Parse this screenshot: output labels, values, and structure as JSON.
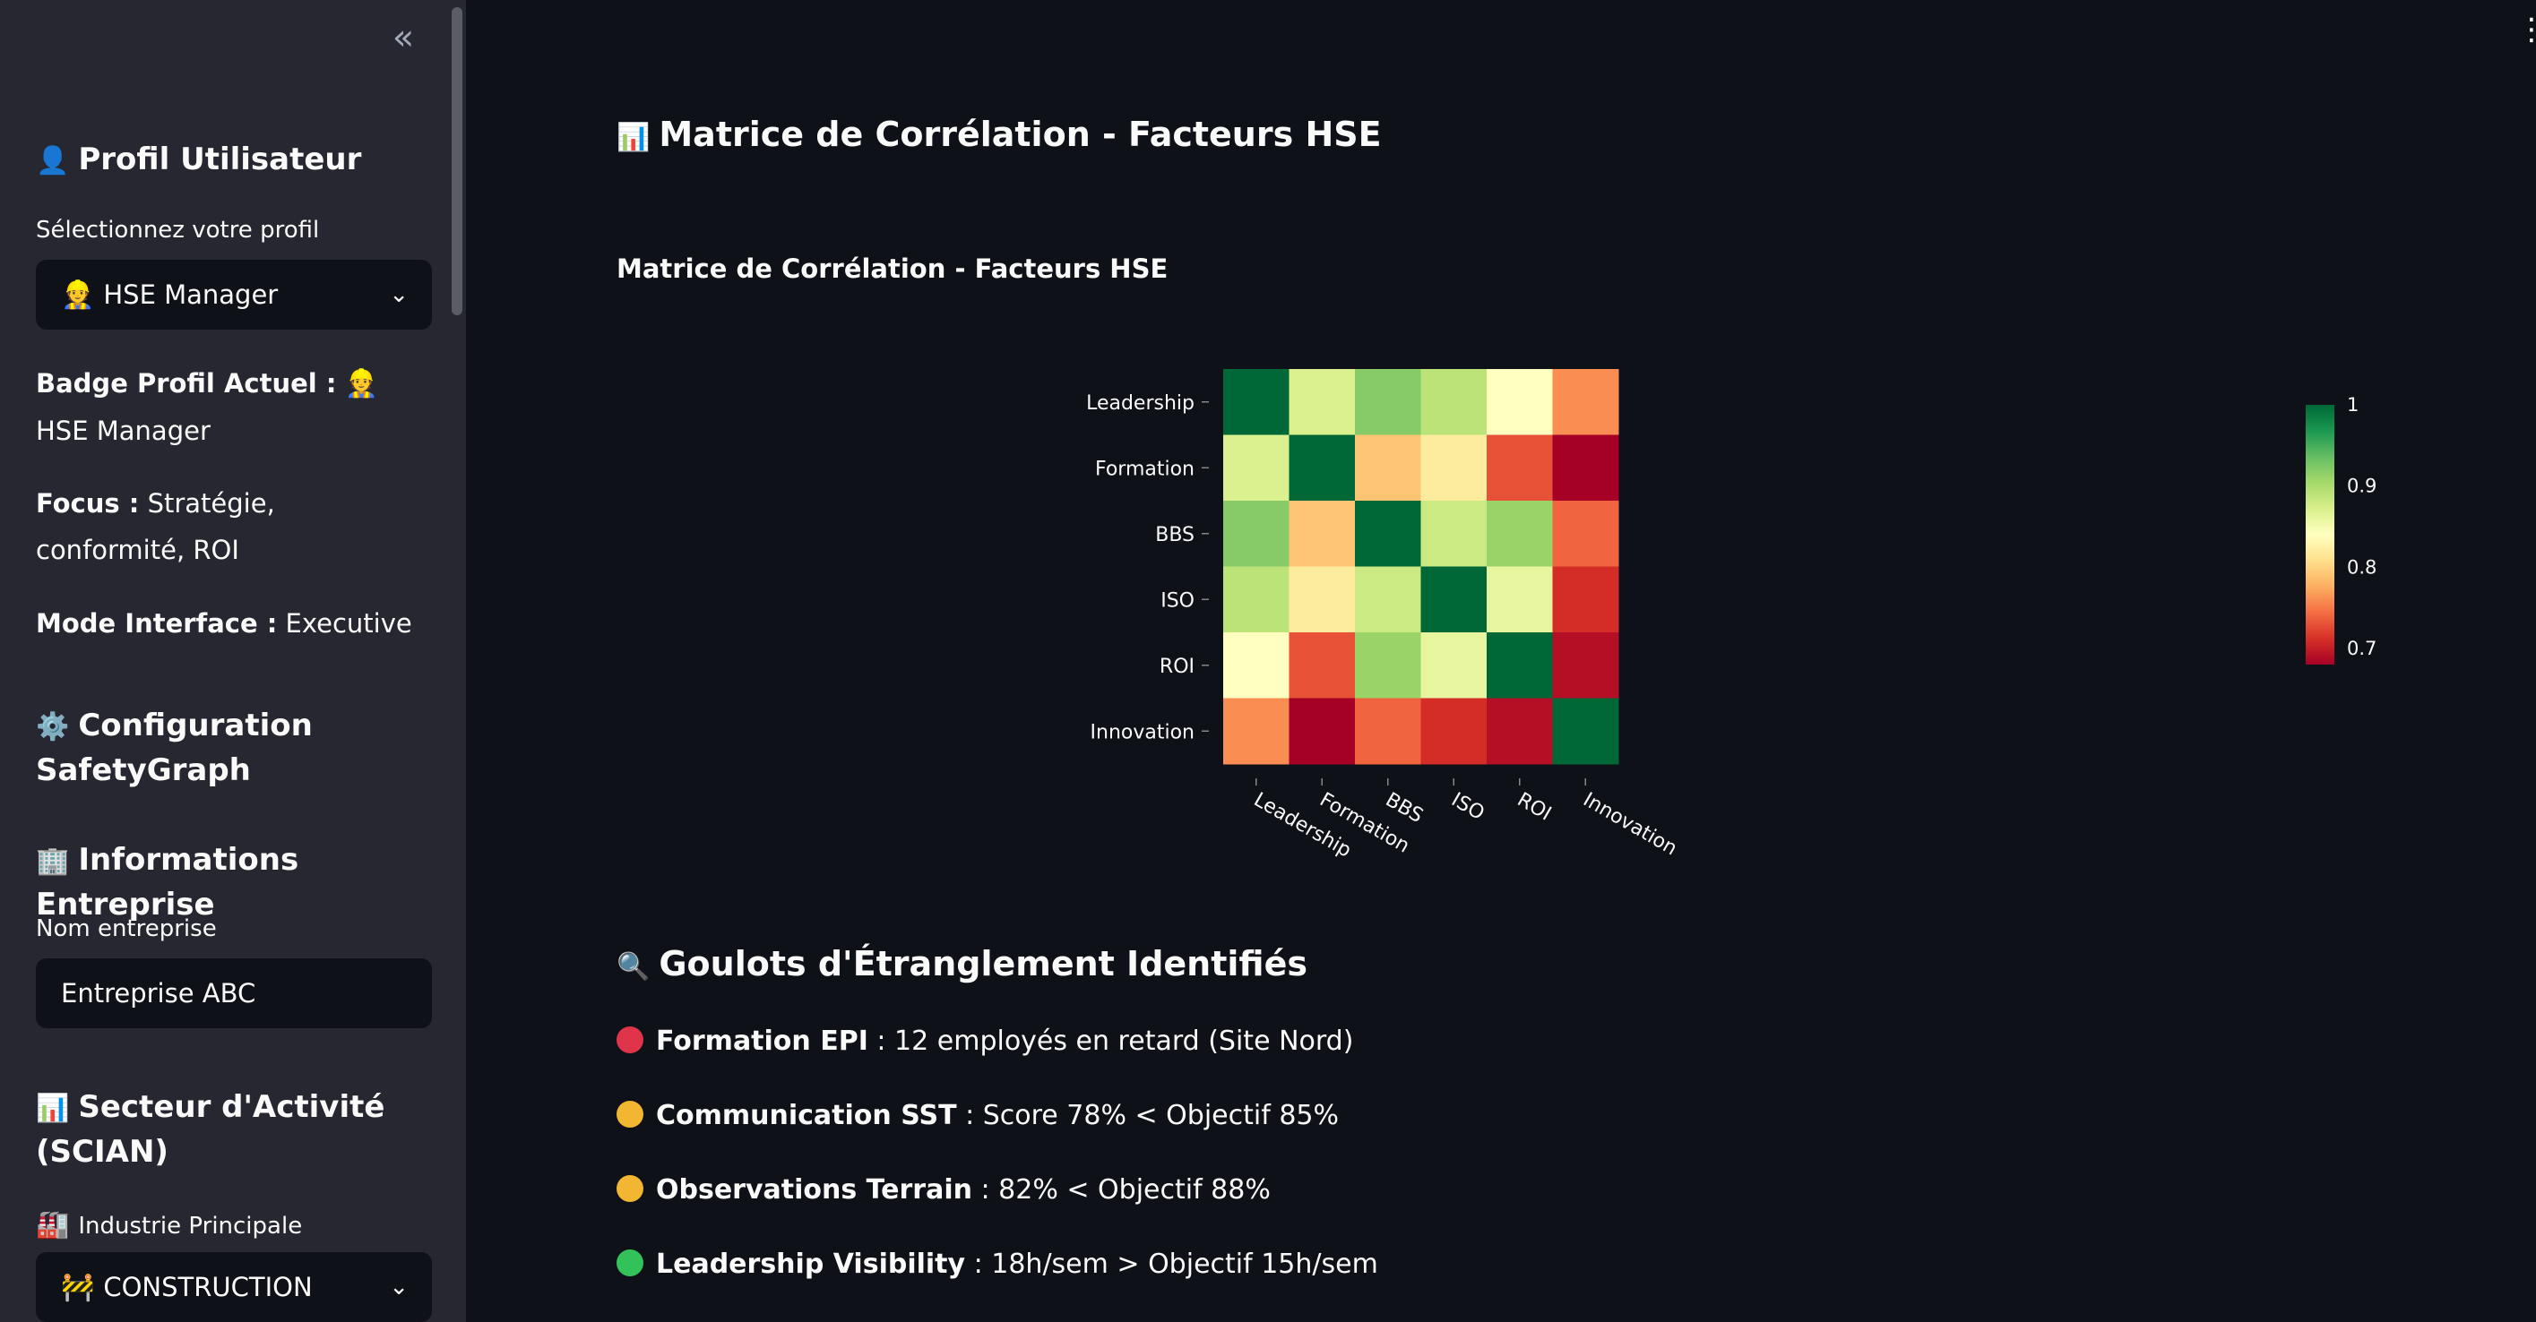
{
  "sidebar": {
    "profile_heading": "Profil Utilisateur",
    "profile_select_label": "Sélectionnez votre profil",
    "profile_selected": "HSE Manager",
    "badge_label": "Badge Profil Actuel :",
    "badge_value": "HSE Manager",
    "focus_label": "Focus :",
    "focus_value": "Stratégie, conformité, ROI",
    "mode_label": "Mode Interface :",
    "mode_value": "Executive",
    "config_heading": "Configuration SafetyGraph",
    "info_heading": "Informations Entreprise",
    "company_label": "Nom entreprise",
    "company_value": "Entreprise ABC",
    "sector_heading": "Secteur d'Activité (SCIAN)",
    "industry_label": "Industrie Principale",
    "industry_selected": "CONSTRUCTION"
  },
  "main": {
    "section_title": "Matrice de Corrélation - Facteurs HSE",
    "goulots_heading": "Goulots d'Étranglement Identifiés",
    "goulots": [
      {
        "label": "Formation EPI",
        "text": " : 12 employés en retard (Site Nord)",
        "color": "#e0344a"
      },
      {
        "label": "Communication SST",
        "text": " : Score 78% < Objectif 85%",
        "color": "#f2b632"
      },
      {
        "label": "Observations Terrain",
        "text": " : 82% < Objectif 88%",
        "color": "#f2b632"
      },
      {
        "label": "Leadership Visibility",
        "text": " : 18h/sem > Objectif 15h/sem",
        "color": "#33c25a"
      }
    ]
  },
  "chart_data": {
    "type": "heatmap",
    "title": "Matrice de Corrélation - Facteurs HSE",
    "x": [
      "Leadership",
      "Formation",
      "BBS",
      "ISO",
      "ROI",
      "Innovation"
    ],
    "y": [
      "Leadership",
      "Formation",
      "BBS",
      "ISO",
      "ROI",
      "Innovation"
    ],
    "z": [
      [
        1.0,
        0.87,
        0.92,
        0.89,
        0.84,
        0.76
      ],
      [
        0.87,
        1.0,
        0.79,
        0.82,
        0.73,
        0.68
      ],
      [
        0.92,
        0.79,
        1.0,
        0.88,
        0.91,
        0.74
      ],
      [
        0.89,
        0.82,
        0.88,
        1.0,
        0.86,
        0.71
      ],
      [
        0.84,
        0.73,
        0.91,
        0.86,
        1.0,
        0.69
      ],
      [
        0.76,
        0.68,
        0.74,
        0.71,
        0.69,
        1.0
      ]
    ],
    "colorscale": "RdYlGn",
    "zmin": 0.68,
    "zmax": 1.0,
    "colorbar_ticks": [
      1,
      0.9,
      0.8,
      0.7
    ]
  }
}
